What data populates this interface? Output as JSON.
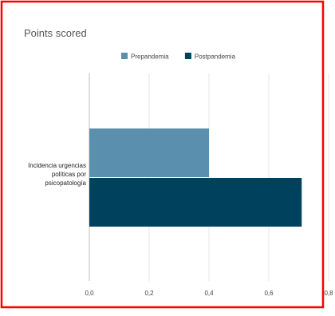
{
  "chart_data": {
    "type": "bar",
    "orientation": "horizontal",
    "title": "Points scored",
    "categories": [
      "Incidencia urgencias políticas por psicopatología"
    ],
    "category_label_lines": [
      "Incidencia urgencias",
      "políticas por",
      "psicopatología"
    ],
    "series": [
      {
        "name": "Prepandemia",
        "values": [
          0.4
        ],
        "color": "#5b8fae"
      },
      {
        "name": "Postpandemia",
        "values": [
          0.71
        ],
        "color": "#00425e"
      }
    ],
    "xlim": [
      0,
      0.8
    ],
    "x_ticks": [
      0,
      0.2,
      0.4,
      0.6,
      0.8
    ],
    "x_tick_labels": [
      "0,0",
      "0,2",
      "0,4",
      "0,6",
      "0,8"
    ],
    "grid": true,
    "legend_position": "top"
  },
  "colors": {
    "border": "#ff0000",
    "grid": "#e6e6e6"
  }
}
